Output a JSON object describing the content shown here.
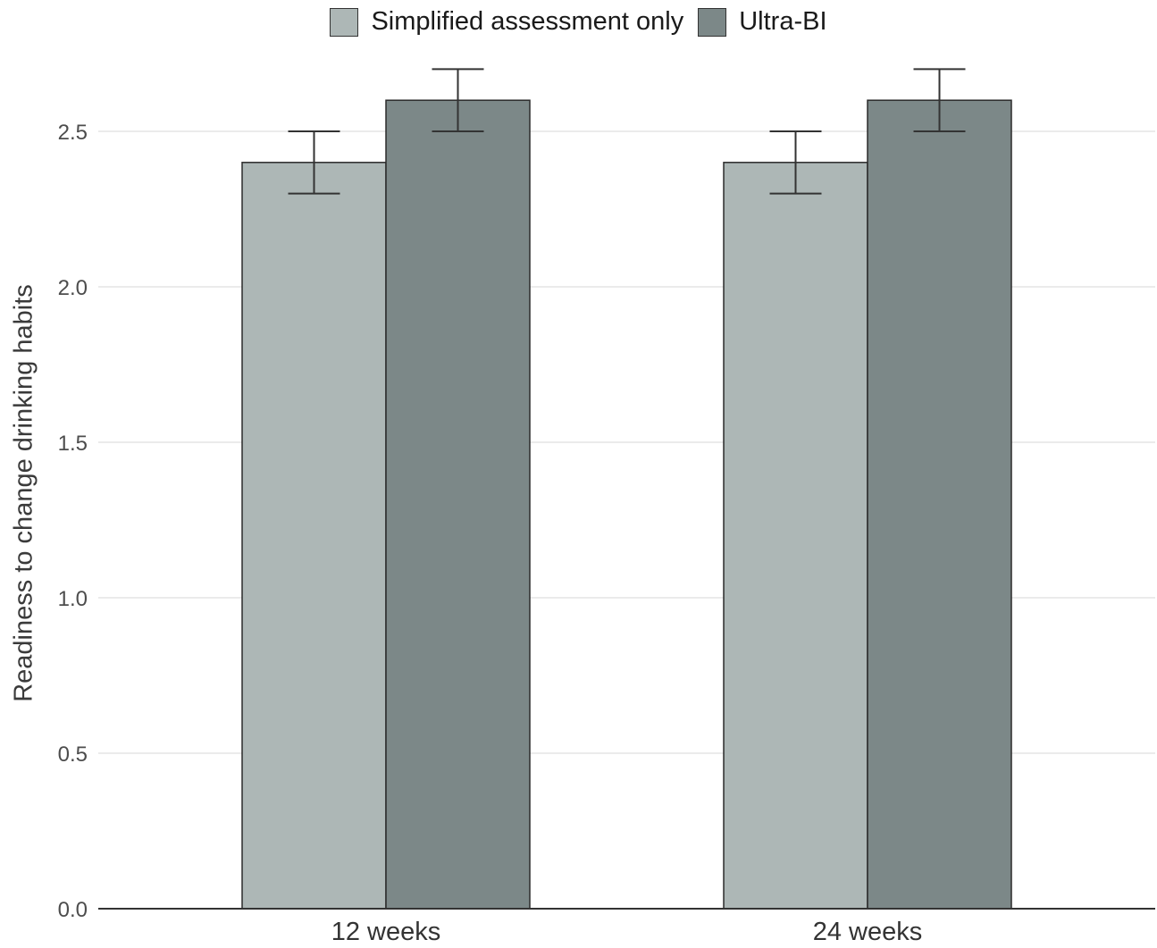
{
  "colors": {
    "simplified": "#adb7b6",
    "ultra": "#7c8888",
    "grid": "#ebebeb",
    "axis": "#333333",
    "bar_stroke": "#2b2b2b"
  },
  "chart_data": {
    "type": "bar",
    "categories": [
      "12 weeks",
      "24 weeks"
    ],
    "series": [
      {
        "name": "Simplified assessment only",
        "values": [
          2.4,
          2.4
        ],
        "error_low": [
          2.3,
          2.3
        ],
        "error_high": [
          2.5,
          2.5
        ]
      },
      {
        "name": "Ultra-BI",
        "values": [
          2.6,
          2.6
        ],
        "error_low": [
          2.5,
          2.5
        ],
        "error_high": [
          2.7,
          2.7
        ]
      }
    ],
    "ylabel": "Readiness to change drinking habits",
    "xlabel": "",
    "ylim": [
      0,
      2.75
    ],
    "yticks": [
      "0.0",
      "0.5",
      "1.0",
      "1.5",
      "2.0",
      "2.5"
    ],
    "grid": "horizontal",
    "legend_position": "top"
  }
}
